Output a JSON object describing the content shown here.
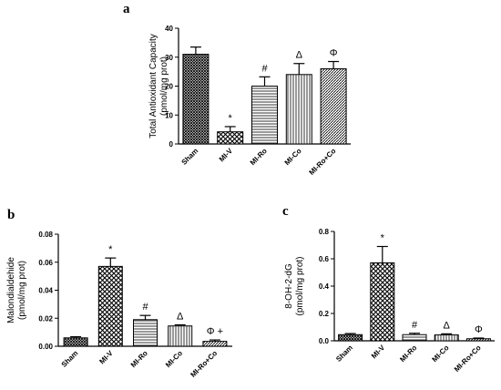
{
  "chart_data": [
    {
      "type": "bar",
      "panel": "a",
      "ylabel_lines": [
        "Total Antioxidant Capacity",
        "(pmol/mg prot)"
      ],
      "categories": [
        "Sham",
        "MI-V",
        "MI-Ro",
        "MI-Co",
        "MI-Ro+Co"
      ],
      "values": [
        31,
        4.2,
        20,
        24,
        26
      ],
      "errors": [
        2.5,
        1.8,
        3.2,
        3.8,
        2.5
      ],
      "significance": [
        "",
        "*",
        "#",
        "Δ",
        "Φ"
      ],
      "ylim": [
        0,
        40
      ],
      "yticks": [
        "0",
        "10",
        "20",
        "30",
        "40"
      ],
      "ytick_values": [
        0,
        10,
        20,
        30,
        40
      ]
    },
    {
      "type": "bar",
      "panel": "b",
      "ylabel_lines": [
        "Malondialdehide",
        "(pmol/mg prot)"
      ],
      "categories": [
        "Sham",
        "MI-V",
        "MI-Ro",
        "MI-Co",
        "MI-Ro+Co"
      ],
      "values": [
        0.006,
        0.057,
        0.019,
        0.0145,
        0.0035
      ],
      "errors": [
        0.0008,
        0.006,
        0.003,
        0.0008,
        0.001
      ],
      "significance": [
        "",
        "*",
        "#",
        "Δ",
        "Φ +"
      ],
      "ylim": [
        0,
        0.08
      ],
      "yticks": [
        "0.00",
        "0.02",
        "0.04",
        "0.06",
        "0.08"
      ],
      "ytick_values": [
        0,
        0.02,
        0.04,
        0.06,
        0.08
      ]
    },
    {
      "type": "bar",
      "panel": "c",
      "ylabel_lines": [
        "8-OH-2-dG",
        "(pmol/mg prot)"
      ],
      "categories": [
        "Sham",
        "MI-V",
        "MI-Ro",
        "MI-Co",
        "MI-Ro+Co"
      ],
      "values": [
        0.045,
        0.57,
        0.045,
        0.043,
        0.015
      ],
      "errors": [
        0.008,
        0.12,
        0.01,
        0.008,
        0.005
      ],
      "significance": [
        "",
        "*",
        "#",
        "Δ",
        "Φ"
      ],
      "ylim": [
        0,
        0.8
      ],
      "yticks": [
        "0.0",
        "0.2",
        "0.4",
        "0.6",
        "0.8"
      ],
      "ytick_values": [
        0,
        0.2,
        0.4,
        0.6,
        0.8
      ]
    }
  ]
}
